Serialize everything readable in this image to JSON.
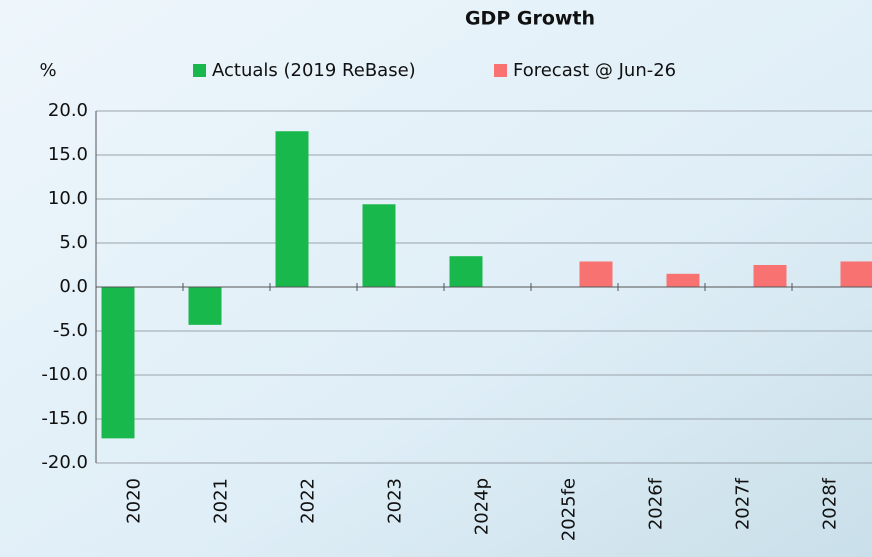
{
  "chart_data": {
    "type": "bar",
    "title": "GDP Growth",
    "y_axis_label": "%",
    "categories": [
      "2020",
      "2021",
      "2022",
      "2023",
      "2024p",
      "2025fe",
      "2026f",
      "2027f",
      "2028f"
    ],
    "series": [
      {
        "name": "Actuals (2019 ReBase)",
        "color": "#19b84c",
        "values": [
          -17.2,
          -4.3,
          17.7,
          9.4,
          3.5,
          null,
          null,
          null,
          null
        ]
      },
      {
        "name": "Forecast @ Jun-26",
        "color": "#f97272",
        "values": [
          null,
          null,
          null,
          null,
          null,
          2.9,
          1.5,
          2.5,
          2.9
        ]
      }
    ],
    "ylim": [
      -20,
      20
    ],
    "yticks": [
      {
        "value": -20,
        "label": "-20.0"
      },
      {
        "value": -15,
        "label": "-15.0"
      },
      {
        "value": -10,
        "label": "-10.0"
      },
      {
        "value": -5,
        "label": "-5.0"
      },
      {
        "value": 0,
        "label": "0.0"
      },
      {
        "value": 5,
        "label": "5.0"
      },
      {
        "value": 10,
        "label": "10.0"
      },
      {
        "value": 15,
        "label": "15.0"
      },
      {
        "value": 20,
        "label": "20.0"
      }
    ],
    "legend": "top"
  }
}
